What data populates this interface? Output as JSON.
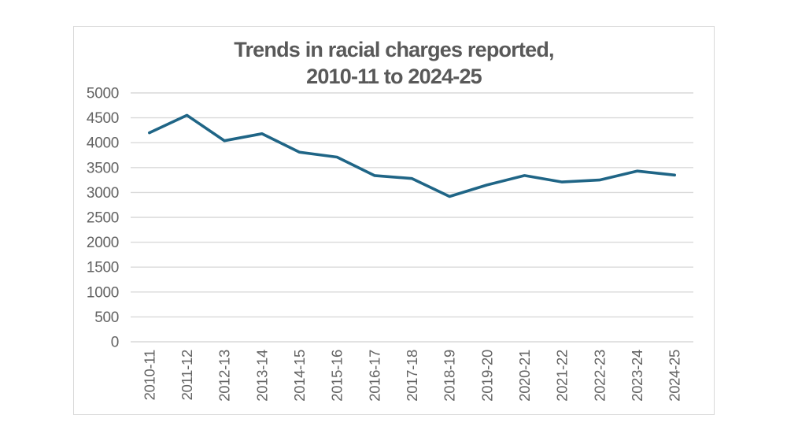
{
  "chart_data": {
    "type": "line",
    "title_line1": "Trends in racial charges reported,",
    "title_line2": "2010-11 to 2024-25",
    "categories": [
      "2010-11",
      "2011-12",
      "2012-13",
      "2013-14",
      "2014-15",
      "2015-16",
      "2016-17",
      "2017-18",
      "2018-19",
      "2019-20",
      "2020-21",
      "2021-22",
      "2022-23",
      "2023-24",
      "2024-25"
    ],
    "values": [
      4200,
      4550,
      4040,
      4180,
      3810,
      3710,
      3340,
      3280,
      2920,
      3150,
      3340,
      3210,
      3250,
      3430,
      3350
    ],
    "y_ticks": [
      5000,
      4500,
      4000,
      3500,
      3000,
      2500,
      2000,
      1500,
      1000,
      500,
      0
    ],
    "ylim": [
      0,
      5000
    ],
    "xlabel": "",
    "ylabel": "",
    "legend": "none",
    "grid": "horizontal",
    "colors": {
      "line": "#1f6586",
      "gridline": "#d9d9d9",
      "frame_border": "#d9d9d9",
      "title_text": "#595959",
      "axis_text": "#636363",
      "background": "#ffffff"
    }
  }
}
